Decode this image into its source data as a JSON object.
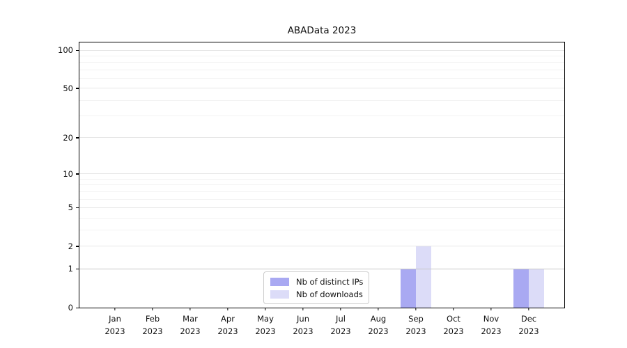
{
  "chart_data": {
    "type": "bar",
    "title": "ABAData 2023",
    "categories": [
      [
        "Jan",
        "2023"
      ],
      [
        "Feb",
        "2023"
      ],
      [
        "Mar",
        "2023"
      ],
      [
        "Apr",
        "2023"
      ],
      [
        "May",
        "2023"
      ],
      [
        "Jun",
        "2023"
      ],
      [
        "Jul",
        "2023"
      ],
      [
        "Aug",
        "2023"
      ],
      [
        "Sep",
        "2023"
      ],
      [
        "Oct",
        "2023"
      ],
      [
        "Nov",
        "2023"
      ],
      [
        "Dec",
        "2023"
      ]
    ],
    "series": [
      {
        "name": "Nb of distinct IPs",
        "color": "#a9a9f2",
        "values": [
          0,
          0,
          0,
          0,
          0,
          0,
          0,
          0,
          1,
          0,
          0,
          1
        ]
      },
      {
        "name": "Nb of downloads",
        "color": "#dcdcf8",
        "values": [
          0,
          0,
          0,
          0,
          0,
          0,
          0,
          0,
          2,
          0,
          0,
          1
        ]
      }
    ],
    "xlabel": "",
    "ylabel": "",
    "yscale": "log10(1+y)",
    "ylim": [
      0,
      115
    ],
    "y_major_ticks": [
      0,
      1,
      2,
      5,
      10,
      20,
      50,
      100
    ],
    "y_minor_ticks": [
      3,
      4,
      6,
      7,
      8,
      9,
      30,
      40,
      60,
      70,
      80,
      90
    ],
    "grid": true,
    "legend_position": "lower center"
  },
  "style_colors": {
    "grid_major": "#e6e6e6",
    "grid_minor": "#f2f2f2",
    "grid_unit_line": "#c6c6c6",
    "spine": "#000000",
    "background": "#ffffff"
  }
}
